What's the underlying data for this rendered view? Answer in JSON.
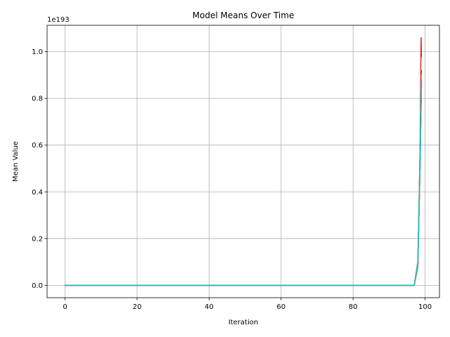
{
  "chart_data": {
    "type": "line",
    "title": "Model Means Over Time",
    "xlabel": "Iteration",
    "ylabel": "Mean Value",
    "y_offset_label": "1e193",
    "xlim": [
      -5,
      104
    ],
    "ylim": [
      -0.053,
      1.113
    ],
    "x_ticks": [
      0,
      20,
      40,
      60,
      80,
      100
    ],
    "x_tick_labels": [
      "0",
      "20",
      "40",
      "60",
      "80",
      "100"
    ],
    "y_ticks": [
      0.0,
      0.2,
      0.4,
      0.6,
      0.8,
      1.0
    ],
    "y_tick_labels": [
      "0.0",
      "0.2",
      "0.4",
      "0.6",
      "0.8",
      "1.0"
    ],
    "grid": true,
    "series": [
      {
        "color": "#1f77b4",
        "x": [
          0,
          97,
          98,
          98.3,
          98.6,
          99
        ],
        "values": [
          0,
          0,
          0.08,
          0.3,
          0.5,
          0.85
        ]
      },
      {
        "color": "#ff7f0e",
        "x": [
          0,
          97,
          98,
          98.3,
          98.6,
          99
        ],
        "values": [
          0,
          0,
          0.09,
          0.31,
          0.52,
          0.88
        ]
      },
      {
        "color": "#2ca02c",
        "x": [
          0,
          97,
          98,
          98.3,
          98.6,
          99
        ],
        "values": [
          0,
          0,
          0.1,
          0.32,
          0.55,
          0.92
        ]
      },
      {
        "color": "#d62728",
        "x": [
          0,
          97,
          98,
          98.3,
          98.6,
          98.9,
          99
        ],
        "values": [
          0,
          0,
          0.1,
          0.33,
          0.58,
          1.06,
          0.98
        ]
      },
      {
        "color": "#9467bd",
        "x": [
          0,
          97,
          98,
          98.3,
          98.6,
          99
        ],
        "values": [
          0,
          0,
          0.09,
          0.3,
          0.54,
          0.9
        ]
      },
      {
        "color": "#8c564b",
        "x": [
          0,
          97,
          98,
          98.3,
          98.6,
          99
        ],
        "values": [
          0,
          0,
          0.08,
          0.29,
          0.5,
          0.86
        ]
      },
      {
        "color": "#e377c2",
        "x": [
          0,
          97,
          98,
          98.3,
          98.6,
          99
        ],
        "values": [
          0,
          0,
          0.09,
          0.31,
          0.53,
          0.89
        ]
      },
      {
        "color": "#7f7f7f",
        "x": [
          0,
          97,
          98,
          98.3,
          98.6,
          99
        ],
        "values": [
          0,
          0,
          0.1,
          0.3,
          0.52,
          0.87
        ]
      },
      {
        "color": "#bcbd22",
        "x": [
          0,
          97,
          98,
          98.3,
          98.6,
          99
        ],
        "values": [
          0,
          0,
          0.09,
          0.32,
          0.55,
          0.9
        ]
      },
      {
        "color": "#17becf",
        "x": [
          0,
          97,
          98,
          98.3,
          98.6,
          99
        ],
        "values": [
          0,
          0,
          0.1,
          0.3,
          0.52,
          0.88
        ]
      }
    ]
  }
}
